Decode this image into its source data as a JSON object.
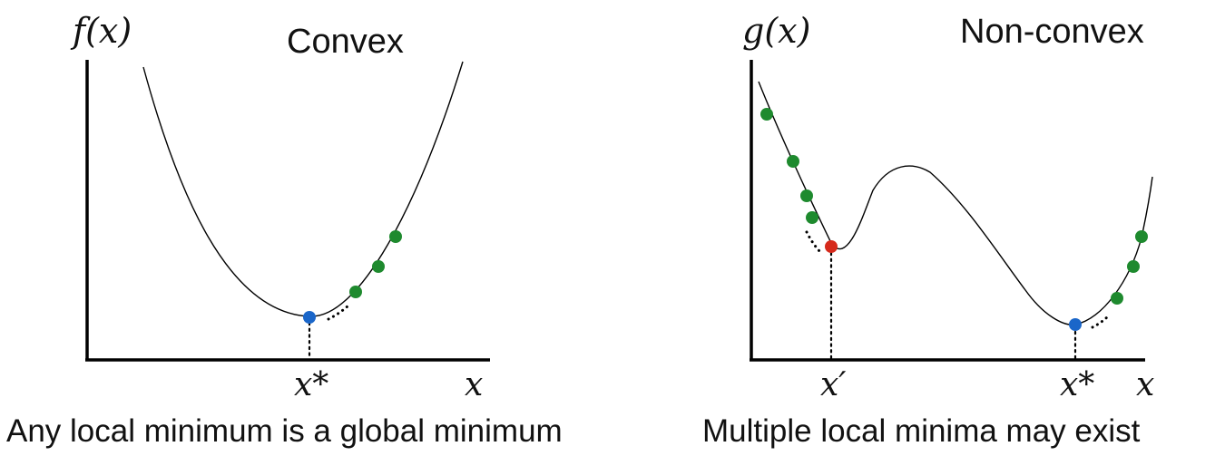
{
  "left_panel": {
    "y_axis_label": "f(x)",
    "title": "Convex",
    "x_axis_label": "x",
    "minimum_label": "x*",
    "caption": "Any local minimum is a global minimum"
  },
  "right_panel": {
    "y_axis_label": "g(x)",
    "title": "Non-convex",
    "x_axis_label": "x",
    "local_minimum_label": "x′",
    "global_minimum_label": "x*",
    "caption": "Multiple local minima may exist"
  },
  "colors": {
    "curve": "#000000",
    "step_point": "#1e8a2e",
    "global_minimum": "#1a66c9",
    "local_minimum": "#d62a1c"
  }
}
